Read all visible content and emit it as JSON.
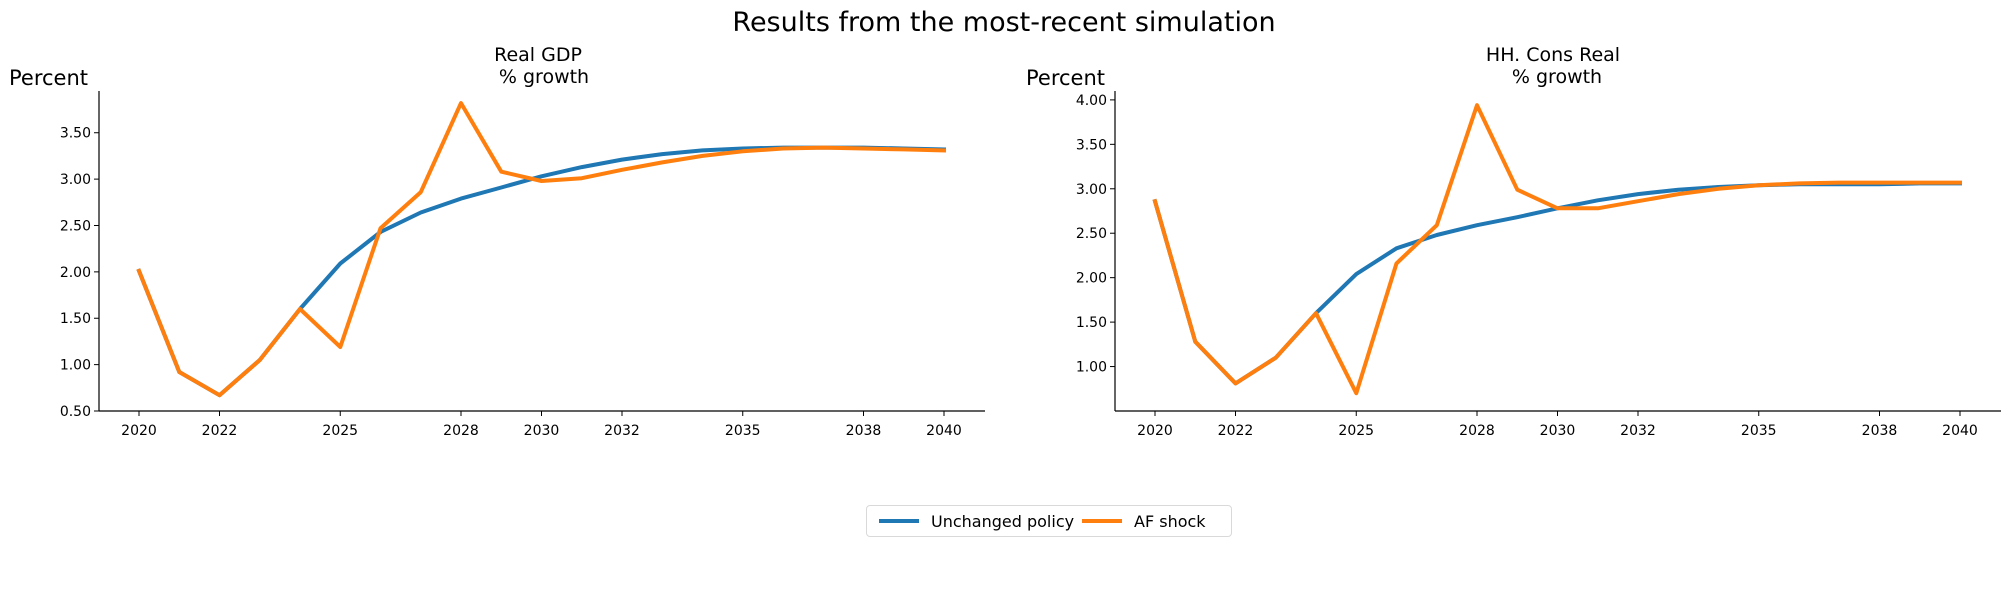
{
  "figure": {
    "title": "Results from the most-recent simulation"
  },
  "colors": {
    "unchanged": "#1f77b4",
    "shock": "#ff7f0e"
  },
  "legend": {
    "items": [
      {
        "label": "Unchanged policy"
      },
      {
        "label": "AF shock"
      }
    ]
  },
  "chart_data": [
    {
      "type": "line",
      "title_line1": "Real GDP",
      "title_line2": "% growth",
      "ylabel": "Percent",
      "xlabel": "",
      "xlim": [
        2020,
        2040
      ],
      "ylim": [
        0.5,
        3.95
      ],
      "xticks": [
        2020,
        2022,
        2025,
        2028,
        2030,
        2032,
        2035,
        2038,
        2040
      ],
      "yticks": [
        0.5,
        1.0,
        1.5,
        2.0,
        2.5,
        3.0,
        3.5
      ],
      "ytick_labels": [
        "0.50",
        "1.00",
        "1.50",
        "2.00",
        "2.50",
        "3.00",
        "3.50"
      ],
      "x": [
        2020,
        2021,
        2022,
        2023,
        2024,
        2025,
        2026,
        2027,
        2028,
        2029,
        2030,
        2031,
        2032,
        2033,
        2034,
        2035,
        2036,
        2037,
        2038,
        2039,
        2040
      ],
      "series": [
        {
          "name": "Unchanged policy",
          "values": [
            2.01,
            0.92,
            0.67,
            1.05,
            1.6,
            2.09,
            2.43,
            2.64,
            2.79,
            2.91,
            3.03,
            3.13,
            3.21,
            3.27,
            3.31,
            3.33,
            3.34,
            3.34,
            3.34,
            3.33,
            3.32
          ]
        },
        {
          "name": "AF shock",
          "values": [
            2.01,
            0.92,
            0.67,
            1.05,
            1.6,
            1.19,
            2.47,
            2.86,
            3.82,
            3.08,
            2.98,
            3.01,
            3.1,
            3.18,
            3.25,
            3.3,
            3.33,
            3.34,
            3.33,
            3.32,
            3.31
          ]
        }
      ]
    },
    {
      "type": "line",
      "title_line1": "HH. Cons Real",
      "title_line2": "% growth",
      "ylabel": "Percent",
      "xlabel": "",
      "xlim": [
        2020,
        2040
      ],
      "ylim": [
        0.5,
        4.1
      ],
      "xticks": [
        2020,
        2022,
        2025,
        2028,
        2030,
        2032,
        2035,
        2038,
        2040
      ],
      "yticks": [
        1.0,
        1.5,
        2.0,
        2.5,
        3.0,
        3.5,
        4.0
      ],
      "ytick_labels": [
        "1.00",
        "1.50",
        "2.00",
        "2.50",
        "3.00",
        "3.50",
        "4.00"
      ],
      "x": [
        2020,
        2021,
        2022,
        2023,
        2024,
        2025,
        2026,
        2027,
        2028,
        2029,
        2030,
        2031,
        2032,
        2033,
        2034,
        2035,
        2036,
        2037,
        2038,
        2039,
        2040
      ],
      "series": [
        {
          "name": "Unchanged policy",
          "values": [
            2.86,
            1.28,
            0.81,
            1.1,
            1.6,
            2.04,
            2.33,
            2.48,
            2.59,
            2.68,
            2.78,
            2.87,
            2.94,
            2.99,
            3.02,
            3.04,
            3.05,
            3.05,
            3.05,
            3.06,
            3.06
          ]
        },
        {
          "name": "AF shock",
          "values": [
            2.86,
            1.28,
            0.81,
            1.1,
            1.6,
            0.7,
            2.16,
            2.59,
            3.94,
            2.99,
            2.78,
            2.78,
            2.86,
            2.94,
            3.0,
            3.04,
            3.06,
            3.07,
            3.07,
            3.07,
            3.07
          ]
        }
      ]
    }
  ]
}
